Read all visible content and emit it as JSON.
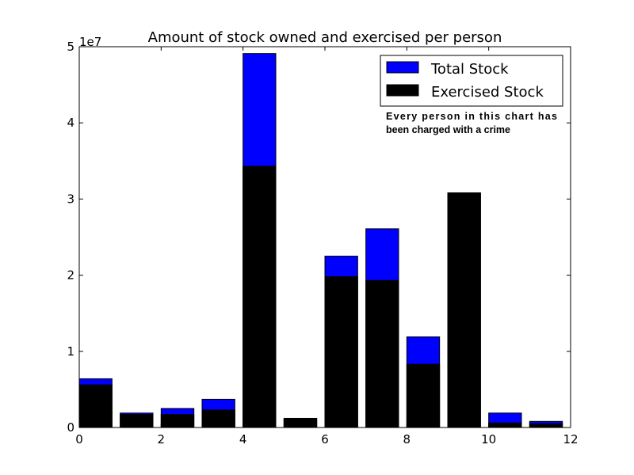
{
  "chart_data": {
    "type": "bar",
    "title": "Amount of stock owned and exercised per person",
    "xlabel": "",
    "ylabel": "",
    "xlim": [
      0,
      12
    ],
    "ylim": [
      0,
      50000000
    ],
    "xticks": [
      0,
      2,
      4,
      6,
      8,
      10,
      12
    ],
    "xtick_labels": [
      "0",
      "2",
      "4",
      "6",
      "8",
      "10",
      "12"
    ],
    "yticks": [
      0,
      10000000,
      20000000,
      30000000,
      40000000,
      50000000
    ],
    "ytick_labels": [
      "0",
      "1",
      "2",
      "3",
      "4",
      "5"
    ],
    "y_offset_label": "1e7",
    "x": [
      0,
      1,
      2,
      3,
      4,
      5,
      6,
      7,
      8,
      9,
      10,
      11
    ],
    "bar_width": 0.8,
    "legend_position": "top-right",
    "grid": false,
    "series": [
      {
        "name": "Total Stock",
        "color": "#0000ff",
        "values": [
          6400000,
          1900000,
          2500000,
          3700000,
          49100000,
          1200000,
          22500000,
          26100000,
          11900000,
          30800000,
          1900000,
          800000
        ]
      },
      {
        "name": "Exercised Stock",
        "color": "#000000",
        "values": [
          5600000,
          1700000,
          1700000,
          2300000,
          34300000,
          1100000,
          19800000,
          19300000,
          8300000,
          30800000,
          600000,
          500000
        ]
      }
    ],
    "annotation": [
      "Every person in this chart has",
      "been charged with a crime"
    ]
  }
}
